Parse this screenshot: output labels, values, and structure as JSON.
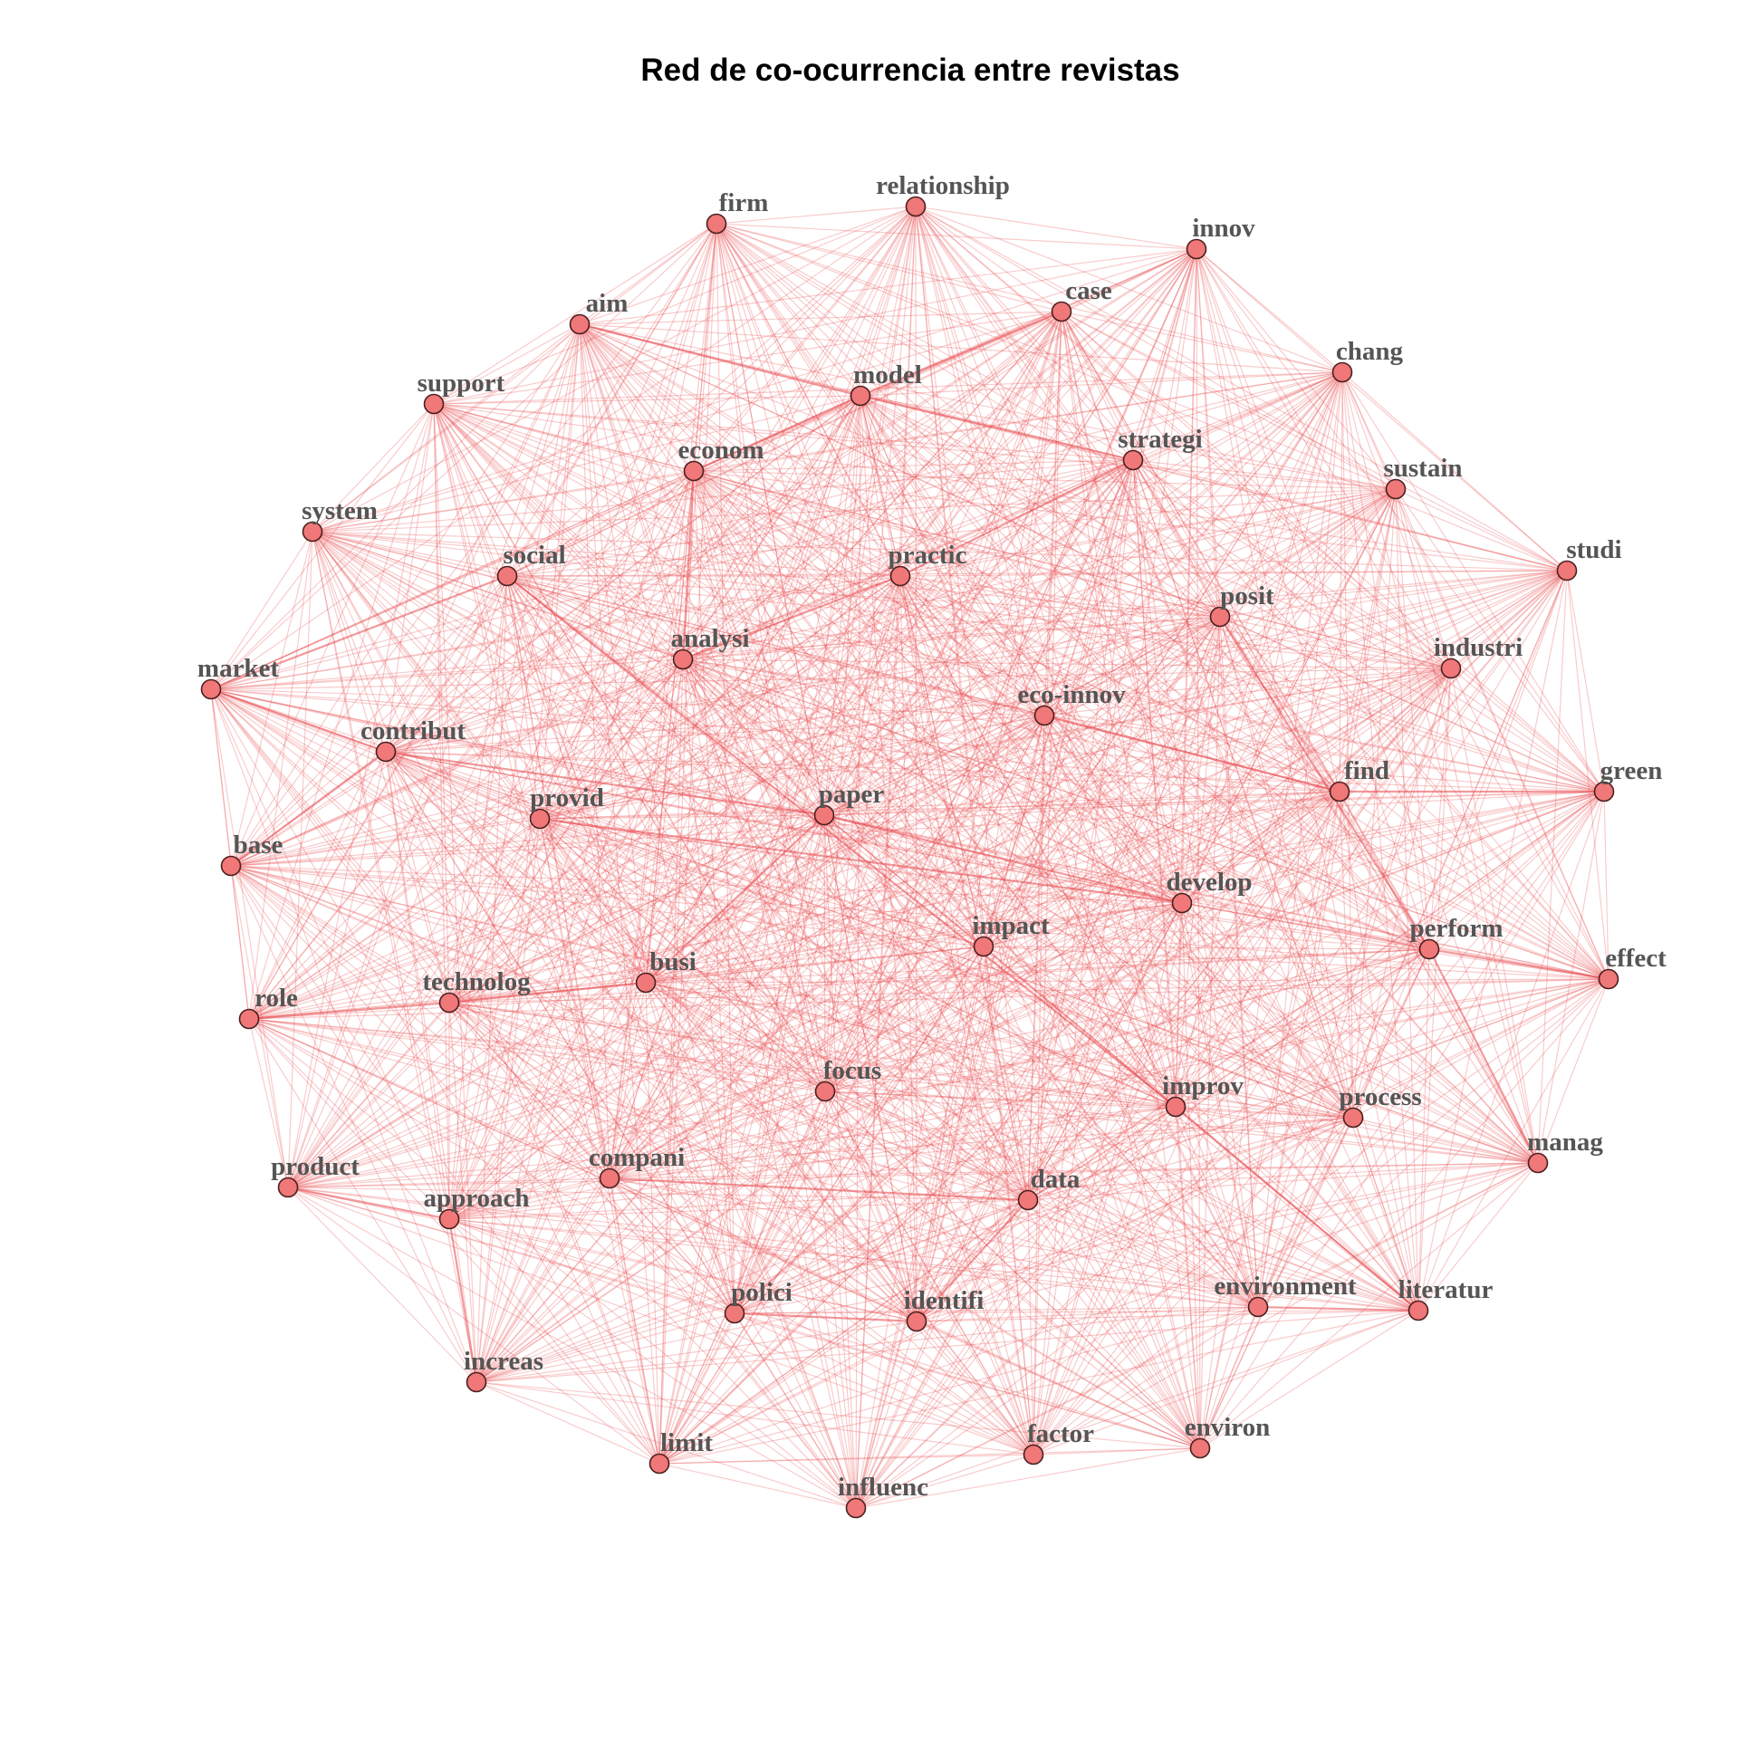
{
  "title": "Red de co-ocurrencia entre revistas",
  "nodes": [
    {
      "id": "firm",
      "label": "firm"
    },
    {
      "id": "relationship",
      "label": "relationship"
    },
    {
      "id": "innov",
      "label": "innov"
    },
    {
      "id": "aim",
      "label": "aim"
    },
    {
      "id": "case",
      "label": "case"
    },
    {
      "id": "chang",
      "label": "chang"
    },
    {
      "id": "support",
      "label": "support"
    },
    {
      "id": "model",
      "label": "model"
    },
    {
      "id": "econom",
      "label": "econom"
    },
    {
      "id": "strategi",
      "label": "strategi"
    },
    {
      "id": "sustain",
      "label": "sustain"
    },
    {
      "id": "system",
      "label": "system"
    },
    {
      "id": "studi",
      "label": "studi"
    },
    {
      "id": "social",
      "label": "social"
    },
    {
      "id": "practic",
      "label": "practic"
    },
    {
      "id": "posit",
      "label": "posit"
    },
    {
      "id": "analysi",
      "label": "analysi"
    },
    {
      "id": "industri",
      "label": "industri"
    },
    {
      "id": "market",
      "label": "market"
    },
    {
      "id": "eco-innov",
      "label": "eco-innov"
    },
    {
      "id": "contribut",
      "label": "contribut"
    },
    {
      "id": "green",
      "label": "green"
    },
    {
      "id": "find",
      "label": "find"
    },
    {
      "id": "provid",
      "label": "provid"
    },
    {
      "id": "paper",
      "label": "paper"
    },
    {
      "id": "base",
      "label": "base"
    },
    {
      "id": "develop",
      "label": "develop"
    },
    {
      "id": "impact",
      "label": "impact"
    },
    {
      "id": "perform",
      "label": "perform"
    },
    {
      "id": "effect",
      "label": "effect"
    },
    {
      "id": "busi",
      "label": "busi"
    },
    {
      "id": "technolog",
      "label": "technolog"
    },
    {
      "id": "role",
      "label": "role"
    },
    {
      "id": "focus",
      "label": "focus"
    },
    {
      "id": "improv",
      "label": "improv"
    },
    {
      "id": "process",
      "label": "process"
    },
    {
      "id": "manag",
      "label": "manag"
    },
    {
      "id": "product",
      "label": "product"
    },
    {
      "id": "compani",
      "label": "compani"
    },
    {
      "id": "data",
      "label": "data"
    },
    {
      "id": "approach",
      "label": "approach"
    },
    {
      "id": "polici",
      "label": "polici"
    },
    {
      "id": "identifi",
      "label": "identifi"
    },
    {
      "id": "environment",
      "label": "environment"
    },
    {
      "id": "literatur",
      "label": "literatur"
    },
    {
      "id": "increas",
      "label": "increas"
    },
    {
      "id": "limit",
      "label": "limit"
    },
    {
      "id": "factor",
      "label": "factor"
    },
    {
      "id": "environ",
      "label": "environ"
    },
    {
      "id": "influenc",
      "label": "influenc"
    }
  ],
  "edges": "all-pairs",
  "strong_edges": [
    [
      "market",
      "social"
    ],
    [
      "model",
      "case"
    ],
    [
      "model",
      "strategi"
    ],
    [
      "econom",
      "model"
    ],
    [
      "aim",
      "model"
    ],
    [
      "contribut",
      "paper"
    ],
    [
      "develop",
      "paper"
    ],
    [
      "provid",
      "develop"
    ],
    [
      "improv",
      "literatur"
    ],
    [
      "data",
      "identifi"
    ],
    [
      "compani",
      "data"
    ],
    [
      "approach",
      "increas"
    ],
    [
      "busi",
      "paper"
    ],
    [
      "base",
      "contribut"
    ],
    [
      "technolog",
      "busi"
    ],
    [
      "find",
      "green"
    ],
    [
      "posit",
      "perform"
    ],
    [
      "polici",
      "identifi"
    ],
    [
      "environment",
      "literatur"
    ],
    [
      "social",
      "improv"
    ],
    [
      "analysi",
      "practic"
    ],
    [
      "practic",
      "strategi"
    ],
    [
      "eco-innov",
      "find"
    ],
    [
      "market",
      "contribut"
    ],
    [
      "econom",
      "analysi"
    ],
    [
      "product",
      "approach"
    ],
    [
      "perform",
      "effect"
    ],
    [
      "manag",
      "perform"
    ],
    [
      "role",
      "technolog"
    ]
  ],
  "colors": {
    "edge": "#e8474d",
    "node_fill": "#f07878",
    "node_stroke": "#4a1f1f",
    "label": "#555555"
  }
}
